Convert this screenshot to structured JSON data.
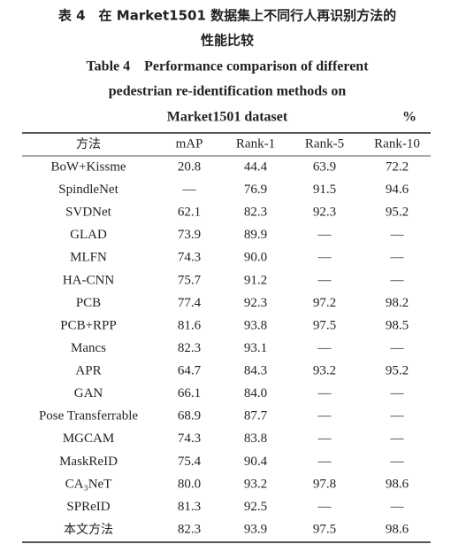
{
  "caption": {
    "chinese": [
      "表 4　在 Market1501 数据集上不同行人再识别方法的",
      "性能比较"
    ],
    "english": [
      "Table 4　Performance comparison of different",
      "pedestrian re-identification methods on",
      "Market1501 dataset"
    ],
    "unit": "%"
  },
  "table": {
    "header": [
      "方法",
      "mAP",
      "Rank-1",
      "Rank-5",
      "Rank-10"
    ],
    "rows": [
      [
        "BoW+Kissme",
        "20.8",
        "44.4",
        "63.9",
        "72.2"
      ],
      [
        "SpindleNet",
        "—",
        "76.9",
        "91.5",
        "94.6"
      ],
      [
        "SVDNet",
        "62.1",
        "82.3",
        "92.3",
        "95.2"
      ],
      [
        "GLAD",
        "73.9",
        "89.9",
        "—",
        "—"
      ],
      [
        "MLFN",
        "74.3",
        "90.0",
        "—",
        "—"
      ],
      [
        "HA-CNN",
        "75.7",
        "91.2",
        "—",
        "—"
      ],
      [
        "PCB",
        "77.4",
        "92.3",
        "97.2",
        "98.2"
      ],
      [
        "PCB+RPP",
        "81.6",
        "93.8",
        "97.5",
        "98.5"
      ],
      [
        "Mancs",
        "82.3",
        "93.1",
        "—",
        "—"
      ],
      [
        "APR",
        "64.7",
        "84.3",
        "93.2",
        "95.2"
      ],
      [
        "GAN",
        "66.1",
        "84.0",
        "—",
        "—"
      ],
      [
        "Pose Transferrable",
        "68.9",
        "87.7",
        "—",
        "—"
      ],
      [
        "MGCAM",
        "74.3",
        "83.8",
        "—",
        "—"
      ],
      [
        "MaskReID",
        "75.4",
        "90.4",
        "—",
        "—"
      ],
      [
        "CA₃NeT",
        "80.0",
        "93.2",
        "97.8",
        "98.6"
      ],
      [
        "SPReID",
        "81.3",
        "92.5",
        "—",
        "—"
      ],
      [
        "本文方法",
        "82.3",
        "93.9",
        "97.5",
        "98.6"
      ]
    ]
  }
}
